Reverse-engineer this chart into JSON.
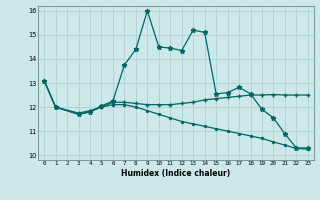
{
  "xlabel": "Humidex (Indice chaleur)",
  "bg_color": "#cce8e8",
  "grid_color": "#aacccc",
  "line_color": "#006666",
  "ylim": [
    9.8,
    16.2
  ],
  "xlim": [
    -0.5,
    23.5
  ],
  "yticks": [
    10,
    11,
    12,
    13,
    14,
    15,
    16
  ],
  "xticks": [
    0,
    1,
    2,
    3,
    4,
    5,
    6,
    7,
    8,
    9,
    10,
    11,
    12,
    13,
    14,
    15,
    16,
    17,
    18,
    19,
    20,
    21,
    22,
    23
  ],
  "s1_x": [
    0,
    1,
    3,
    4,
    5,
    6,
    7,
    8,
    9,
    10,
    11,
    12,
    13,
    14,
    15,
    16,
    17,
    18,
    19,
    20,
    21,
    22,
    23
  ],
  "s1_y": [
    13.1,
    12.0,
    11.7,
    11.8,
    12.05,
    12.25,
    13.75,
    14.4,
    16.0,
    14.5,
    14.45,
    14.35,
    15.2,
    15.1,
    12.55,
    12.6,
    12.82,
    12.55,
    11.9,
    11.55,
    10.88,
    10.3,
    10.3
  ],
  "s2_x": [
    0,
    1,
    3,
    4,
    5,
    6,
    7,
    8,
    9,
    10,
    11,
    12,
    13,
    14,
    15,
    16,
    17,
    18,
    19,
    20,
    21,
    22,
    23
  ],
  "s2_y": [
    13.1,
    12.0,
    11.75,
    11.85,
    12.0,
    12.2,
    12.2,
    12.15,
    12.1,
    12.1,
    12.1,
    12.15,
    12.2,
    12.3,
    12.35,
    12.4,
    12.45,
    12.5,
    12.5,
    12.52,
    12.5,
    12.5,
    12.5
  ],
  "s3_x": [
    0,
    1,
    3,
    4,
    5,
    6,
    7,
    8,
    9,
    10,
    11,
    12,
    13,
    14,
    15,
    16,
    17,
    18,
    19,
    20,
    21,
    22,
    23
  ],
  "s3_y": [
    13.1,
    12.0,
    11.7,
    11.8,
    12.0,
    12.1,
    12.1,
    12.0,
    11.85,
    11.7,
    11.55,
    11.4,
    11.3,
    11.2,
    11.1,
    11.0,
    10.9,
    10.8,
    10.7,
    10.55,
    10.42,
    10.28,
    10.25
  ]
}
